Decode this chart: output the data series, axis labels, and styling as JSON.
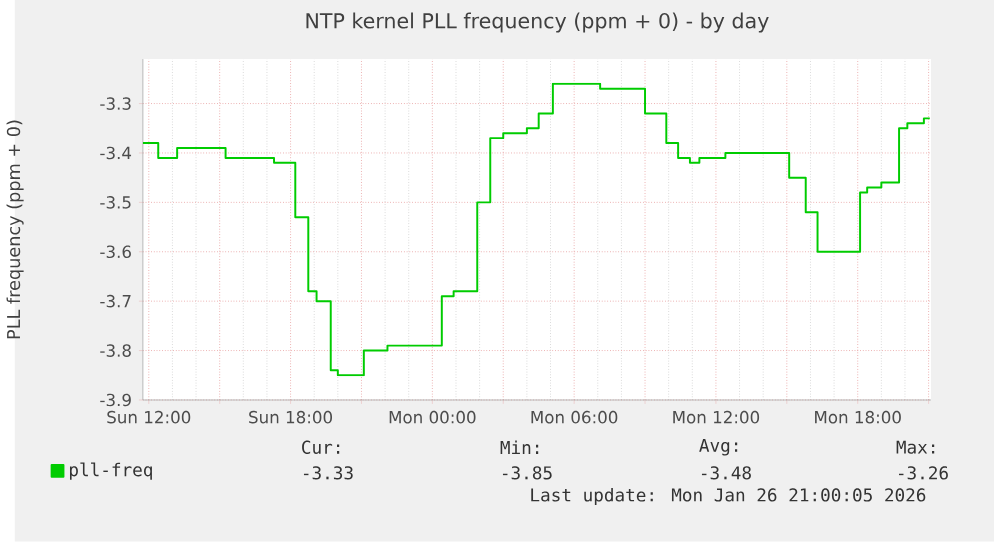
{
  "chart_data": {
    "type": "step",
    "title": "NTP kernel PLL frequency (ppm + 0) - by day",
    "ylabel": "PLL frequency (ppm + 0)",
    "x": [
      "2026-01-25T11:45",
      "2026-01-25T12:24",
      "2026-01-25T13:12",
      "2026-01-25T15:15",
      "2026-01-25T16:36",
      "2026-01-25T17:18",
      "2026-01-25T17:42",
      "2026-01-25T18:12",
      "2026-01-25T18:45",
      "2026-01-25T19:06",
      "2026-01-25T19:42",
      "2026-01-25T20:00",
      "2026-01-25T21:06",
      "2026-01-25T22:06",
      "2026-01-25T23:48",
      "2026-01-26T00:24",
      "2026-01-26T00:54",
      "2026-01-26T01:54",
      "2026-01-26T02:27",
      "2026-01-26T03:00",
      "2026-01-26T04:00",
      "2026-01-26T04:30",
      "2026-01-26T05:06",
      "2026-01-26T07:06",
      "2026-01-26T08:00",
      "2026-01-26T09:00",
      "2026-01-26T09:54",
      "2026-01-26T10:24",
      "2026-01-26T10:54",
      "2026-01-26T11:18",
      "2026-01-26T12:24",
      "2026-01-26T13:42",
      "2026-01-26T15:06",
      "2026-01-26T15:48",
      "2026-01-26T16:18",
      "2026-01-26T17:00",
      "2026-01-26T18:06",
      "2026-01-26T18:24",
      "2026-01-26T19:00",
      "2026-01-26T19:45",
      "2026-01-26T20:06",
      "2026-01-26T20:48",
      "2026-01-26T21:03"
    ],
    "series": [
      {
        "name": "pll-freq",
        "color": "#00cc00",
        "values": [
          -3.38,
          -3.41,
          -3.39,
          -3.41,
          -3.41,
          -3.42,
          -3.42,
          -3.53,
          -3.68,
          -3.7,
          -3.84,
          -3.85,
          -3.8,
          -3.79,
          -3.79,
          -3.69,
          -3.68,
          -3.5,
          -3.37,
          -3.36,
          -3.35,
          -3.32,
          -3.26,
          -3.27,
          -3.27,
          -3.32,
          -3.38,
          -3.41,
          -3.42,
          -3.41,
          -3.4,
          -3.4,
          -3.45,
          -3.52,
          -3.6,
          -3.6,
          -3.48,
          -3.47,
          -3.46,
          -3.35,
          -3.34,
          -3.33,
          -3.33
        ]
      }
    ],
    "xlim": [
      "2026-01-25T11:45",
      "2026-01-26T21:06"
    ],
    "xticks": [
      {
        "value": "2026-01-25T12:00",
        "label": "Sun 12:00"
      },
      {
        "value": "2026-01-25T15:00",
        "label": null
      },
      {
        "value": "2026-01-25T18:00",
        "label": "Sun 18:00"
      },
      {
        "value": "2026-01-25T21:00",
        "label": null
      },
      {
        "value": "2026-01-26T00:00",
        "label": "Mon 00:00"
      },
      {
        "value": "2026-01-26T03:00",
        "label": null
      },
      {
        "value": "2026-01-26T06:00",
        "label": "Mon 06:00"
      },
      {
        "value": "2026-01-26T09:00",
        "label": null
      },
      {
        "value": "2026-01-26T12:00",
        "label": "Mon 12:00"
      },
      {
        "value": "2026-01-26T15:00",
        "label": null
      },
      {
        "value": "2026-01-26T18:00",
        "label": "Mon 18:00"
      },
      {
        "value": "2026-01-26T21:00",
        "label": null
      }
    ],
    "ylim": [
      -3.9,
      -3.21
    ],
    "yticks": [
      -3.9,
      -3.8,
      -3.7,
      -3.6,
      -3.5,
      -3.4,
      -3.3
    ],
    "grid": true,
    "legend": "bottom",
    "annotations": [
      "Cur:",
      "-3.33",
      "Min:",
      "-3.85",
      "Avg:",
      "-3.48",
      "Max:",
      "-3.26",
      "Last update: Mon Jan 26 21:00:05 2026"
    ]
  }
}
